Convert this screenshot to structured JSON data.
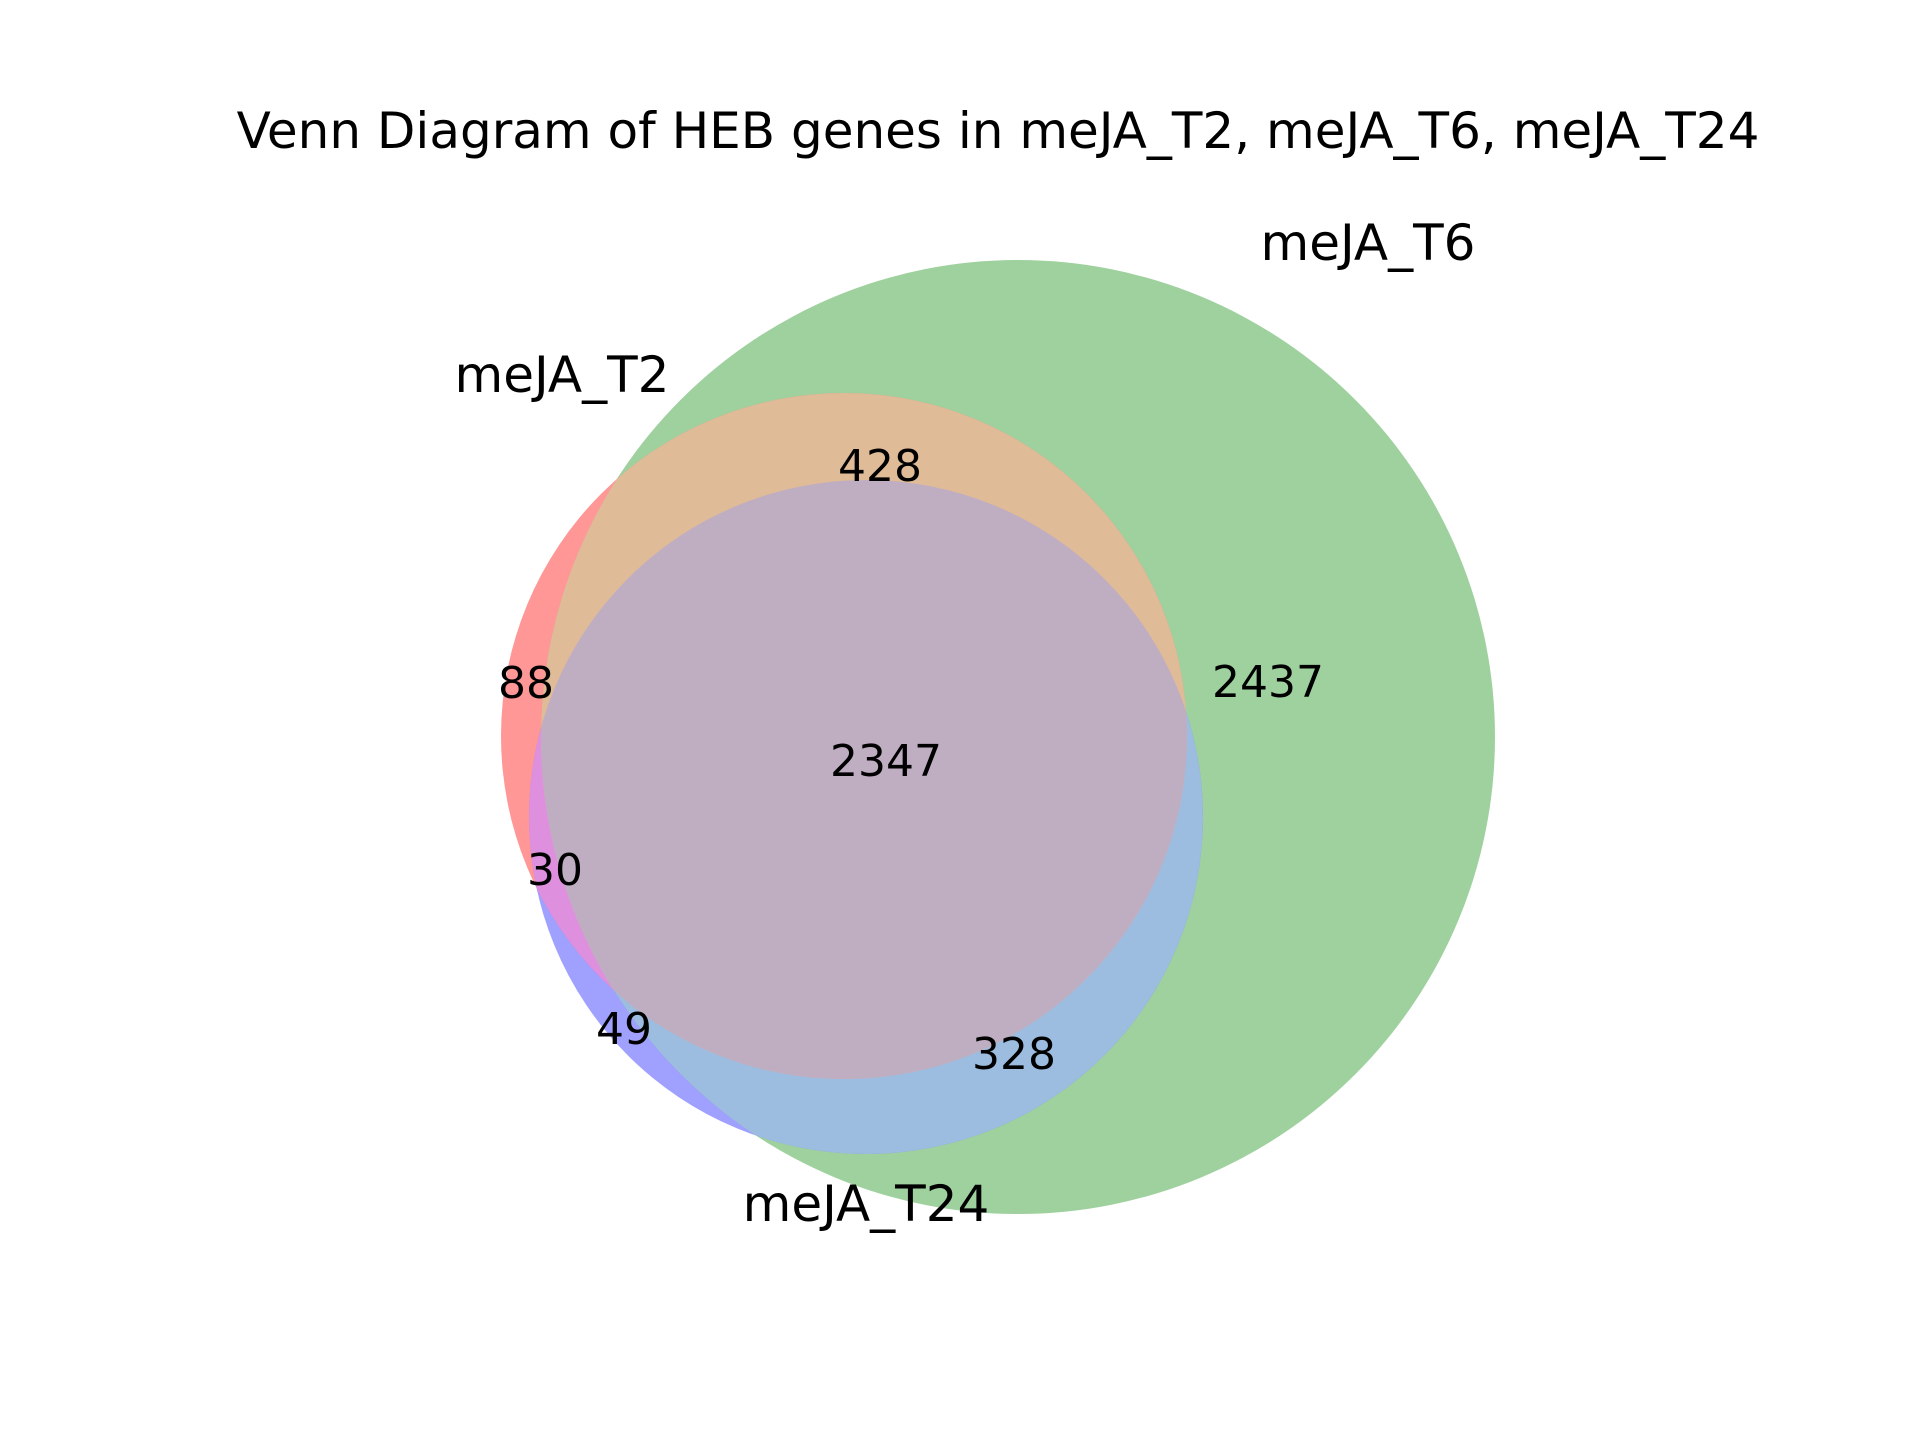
{
  "title": "Venn Diagram of HEB genes in meJA_T2, meJA_T6, meJA_T24",
  "sets": [
    {
      "id": "t2",
      "name": "meJA_T2",
      "color": "#ff6060"
    },
    {
      "id": "t6",
      "name": "meJA_T6",
      "color": "#5fb25f"
    },
    {
      "id": "t24",
      "name": "meJA_T24",
      "color": "#6060ff"
    }
  ],
  "regions": {
    "t2_only": "88",
    "t6_only": "2437",
    "t24_only": "49",
    "t2_t6": "428",
    "t2_t24": "30",
    "t6_t24": "328",
    "t2_t6_t24": "2347"
  },
  "region_colors": {
    "t2_t6": "#e0bb98",
    "t2_t24": "#de90de",
    "t6_t24": "#9cbce0",
    "t2_t6_t24": "#bfadc2"
  }
}
